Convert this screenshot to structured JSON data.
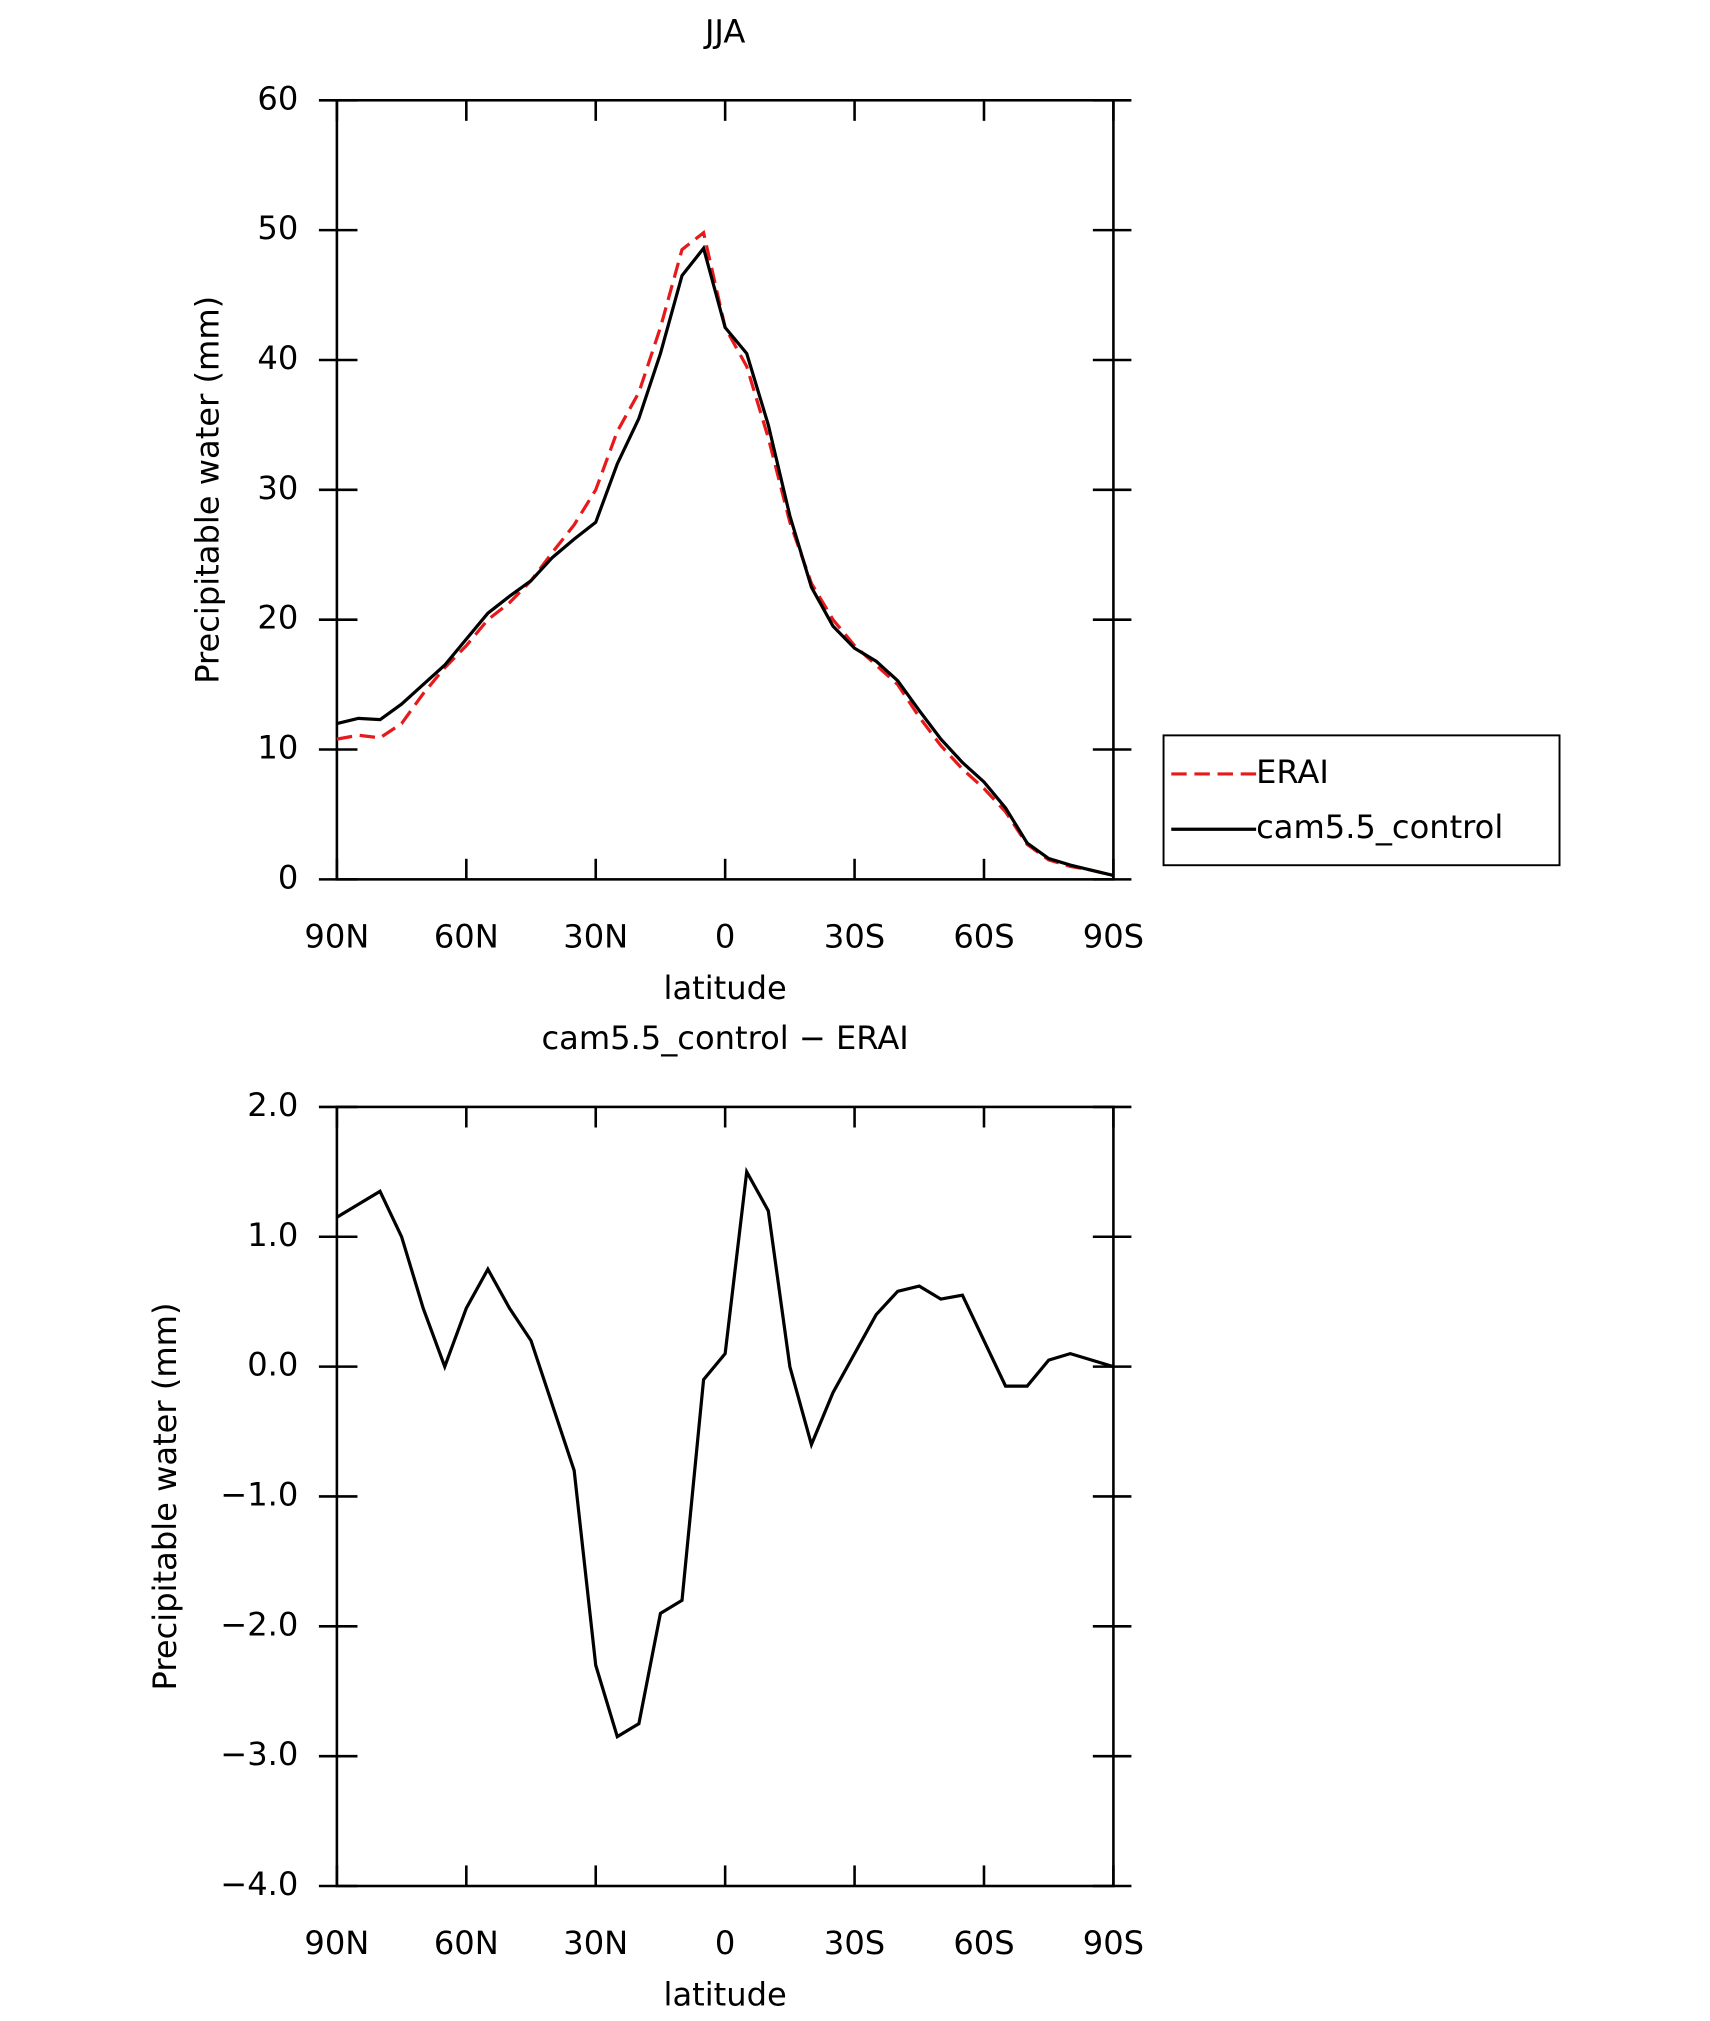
{
  "chart_data": [
    {
      "type": "line",
      "title": "JJA",
      "xlabel": "latitude",
      "ylabel": "Precipitable water (mm)",
      "x": [
        90,
        85,
        80,
        75,
        70,
        65,
        60,
        55,
        50,
        45,
        40,
        35,
        30,
        25,
        20,
        15,
        10,
        5,
        0,
        -5,
        -10,
        -15,
        -20,
        -25,
        -30,
        -35,
        -40,
        -45,
        -50,
        -55,
        -60,
        -65,
        -70,
        -75,
        -80,
        -85,
        -90
      ],
      "series": [
        {
          "name": "ERAI",
          "color": "#e8191b",
          "dash": true,
          "values": [
            10.8,
            11.1,
            10.9,
            12.0,
            14.3,
            16.3,
            18.0,
            20.0,
            21.3,
            23.0,
            25.2,
            27.3,
            30.0,
            34.5,
            37.5,
            42.5,
            48.5,
            49.8,
            42.5,
            39.5,
            34.0,
            27.5,
            22.8,
            20.0,
            18.0,
            16.5,
            15.0,
            12.5,
            10.3,
            8.5,
            7.0,
            5.2,
            2.7,
            1.5,
            1.0,
            0.7,
            0.3
          ]
        },
        {
          "name": "cam5.5_control",
          "color": "#000000",
          "dash": false,
          "values": [
            12.0,
            12.4,
            12.3,
            13.5,
            15.0,
            16.5,
            18.5,
            20.5,
            21.8,
            23.0,
            24.8,
            26.2,
            27.5,
            32.0,
            35.5,
            40.5,
            46.5,
            48.6,
            42.5,
            40.5,
            35.0,
            28.0,
            22.5,
            19.5,
            17.8,
            16.8,
            15.3,
            13.0,
            10.8,
            9.0,
            7.5,
            5.5,
            2.8,
            1.6,
            1.1,
            0.7,
            0.3
          ]
        }
      ],
      "xlim": [
        90,
        -90
      ],
      "xticks": [
        {
          "value": 90,
          "label": "90N"
        },
        {
          "value": 60,
          "label": "60N"
        },
        {
          "value": 30,
          "label": "30N"
        },
        0,
        {
          "value": -30,
          "label": "30S"
        },
        {
          "value": -60,
          "label": "60S"
        },
        {
          "value": -90,
          "label": "90S"
        }
      ],
      "ylim": [
        0,
        60
      ],
      "yticks": [
        0,
        10,
        20,
        30,
        40,
        50,
        60
      ],
      "legend": "right"
    },
    {
      "type": "line",
      "title": "cam5.5_control − ERAI",
      "xlabel": "latitude",
      "ylabel": "Precipitable water (mm)",
      "x": [
        90,
        85,
        80,
        75,
        70,
        65,
        60,
        55,
        50,
        45,
        40,
        35,
        30,
        25,
        20,
        15,
        10,
        5,
        0,
        -5,
        -10,
        -15,
        -20,
        -25,
        -30,
        -35,
        -40,
        -45,
        -50,
        -55,
        -60,
        -65,
        -70,
        -75,
        -80,
        -85,
        -90
      ],
      "series": [
        {
          "color": "#000000",
          "values": [
            1.15,
            1.25,
            1.35,
            1.0,
            0.45,
            0.0,
            0.45,
            0.75,
            0.45,
            0.2,
            -0.3,
            -0.8,
            -2.3,
            -2.85,
            -2.75,
            -1.9,
            -1.8,
            -0.1,
            0.1,
            1.5,
            1.2,
            0.0,
            -0.6,
            -0.2,
            0.1,
            0.4,
            0.58,
            0.62,
            0.52,
            0.55,
            0.2,
            -0.15,
            -0.15,
            0.05,
            0.1,
            0.05,
            0.0
          ]
        }
      ],
      "xlim": [
        90,
        -90
      ],
      "xticks": [
        {
          "value": 90,
          "label": "90N"
        },
        {
          "value": 60,
          "label": "60N"
        },
        {
          "value": 30,
          "label": "30N"
        },
        0,
        {
          "value": -30,
          "label": "30S"
        },
        {
          "value": -60,
          "label": "60S"
        },
        {
          "value": -90,
          "label": "90S"
        }
      ],
      "ylim": [
        -4,
        2
      ],
      "yticks": [
        {
          "value": -4,
          "label": "−4.0"
        },
        {
          "value": -3,
          "label": "−3.0"
        },
        {
          "value": -2,
          "label": "−2.0"
        },
        {
          "value": -1,
          "label": "−1.0"
        },
        {
          "value": 0,
          "label": "0.0"
        },
        {
          "value": 1,
          "label": "1.0"
        },
        {
          "value": 2,
          "label": "2.0"
        }
      ]
    }
  ]
}
